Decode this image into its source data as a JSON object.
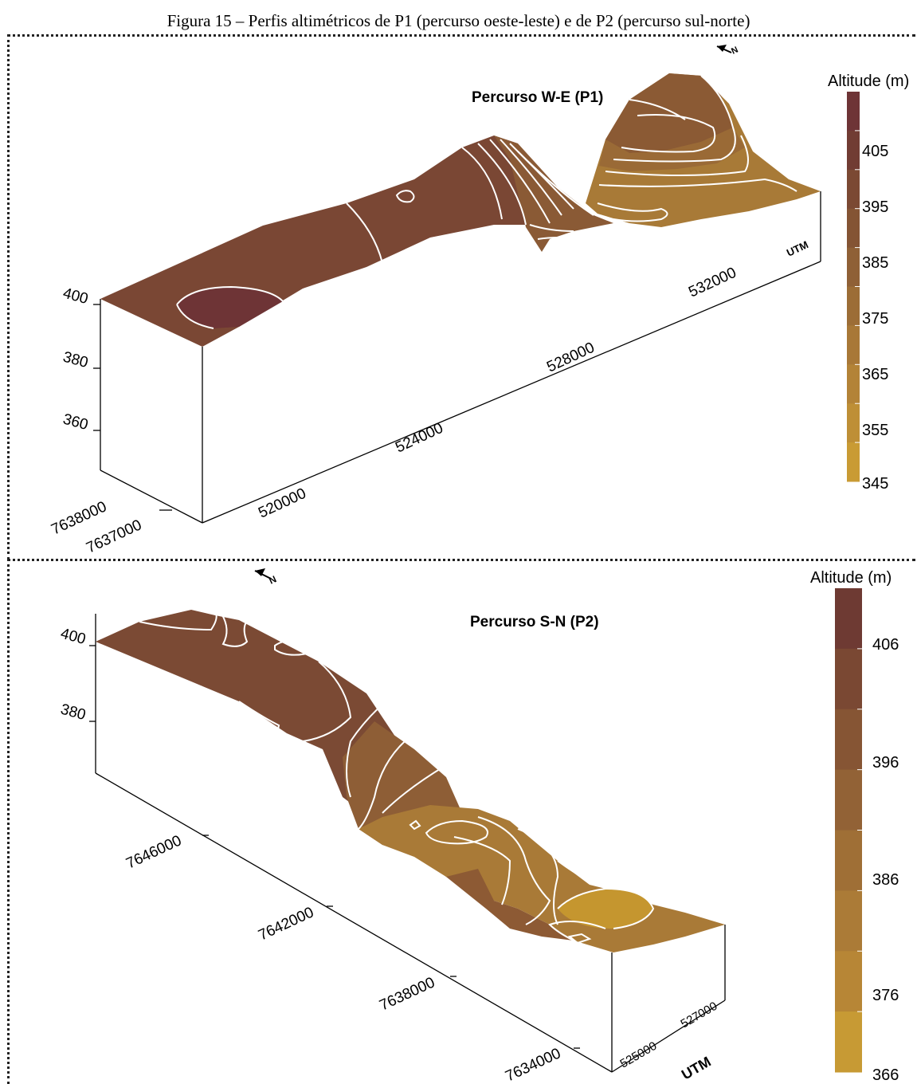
{
  "caption": "Figura 15 – Perfis altimétricos de P1 (percurso oeste-leste) e de P2 (percurso sul-norte)",
  "north_arrow_label": "N",
  "p1": {
    "title": "Percurso W-E (P1)",
    "legend_title": "Altitude (m)",
    "legend_labels": [
      "405",
      "395",
      "385",
      "375",
      "365",
      "355",
      "345"
    ],
    "legend_colors": [
      "#6e3436",
      "#713c33",
      "#7b4933",
      "#845434",
      "#8f6036",
      "#9c6d36",
      "#a87837",
      "#b38337",
      "#be8f36",
      "#c99b34"
    ],
    "z_ticks": [
      "400",
      "380",
      "360"
    ],
    "y_ticks": [
      "7638000",
      "7637000"
    ],
    "x_ticks": [
      "520000",
      "524000",
      "528000",
      "532000"
    ],
    "utm_label": "UTM"
  },
  "p2": {
    "title": "Percurso S-N (P2)",
    "legend_title": "Altitude (m)",
    "legend_labels": [
      "406",
      "396",
      "386",
      "376",
      "366"
    ],
    "legend_colors": [
      "#6e3a33",
      "#7a4833",
      "#865534",
      "#926236",
      "#9f6f36",
      "#ab7b37",
      "#b78636",
      "#c79a34"
    ],
    "z_ticks": [
      "400",
      "380"
    ],
    "y_ticks": [
      "7646000",
      "7642000",
      "7638000",
      "7634000"
    ],
    "x_ticks": [
      "525000",
      "527000"
    ],
    "utm_label": "UTM"
  },
  "colors": {
    "surface_dark": "#6f3a33",
    "surface_mid": "#7d4a34",
    "surface_light": "#9a6a36",
    "surface_tan": "#b98a36",
    "contour": "#ffffff",
    "box_line": "#000000"
  }
}
